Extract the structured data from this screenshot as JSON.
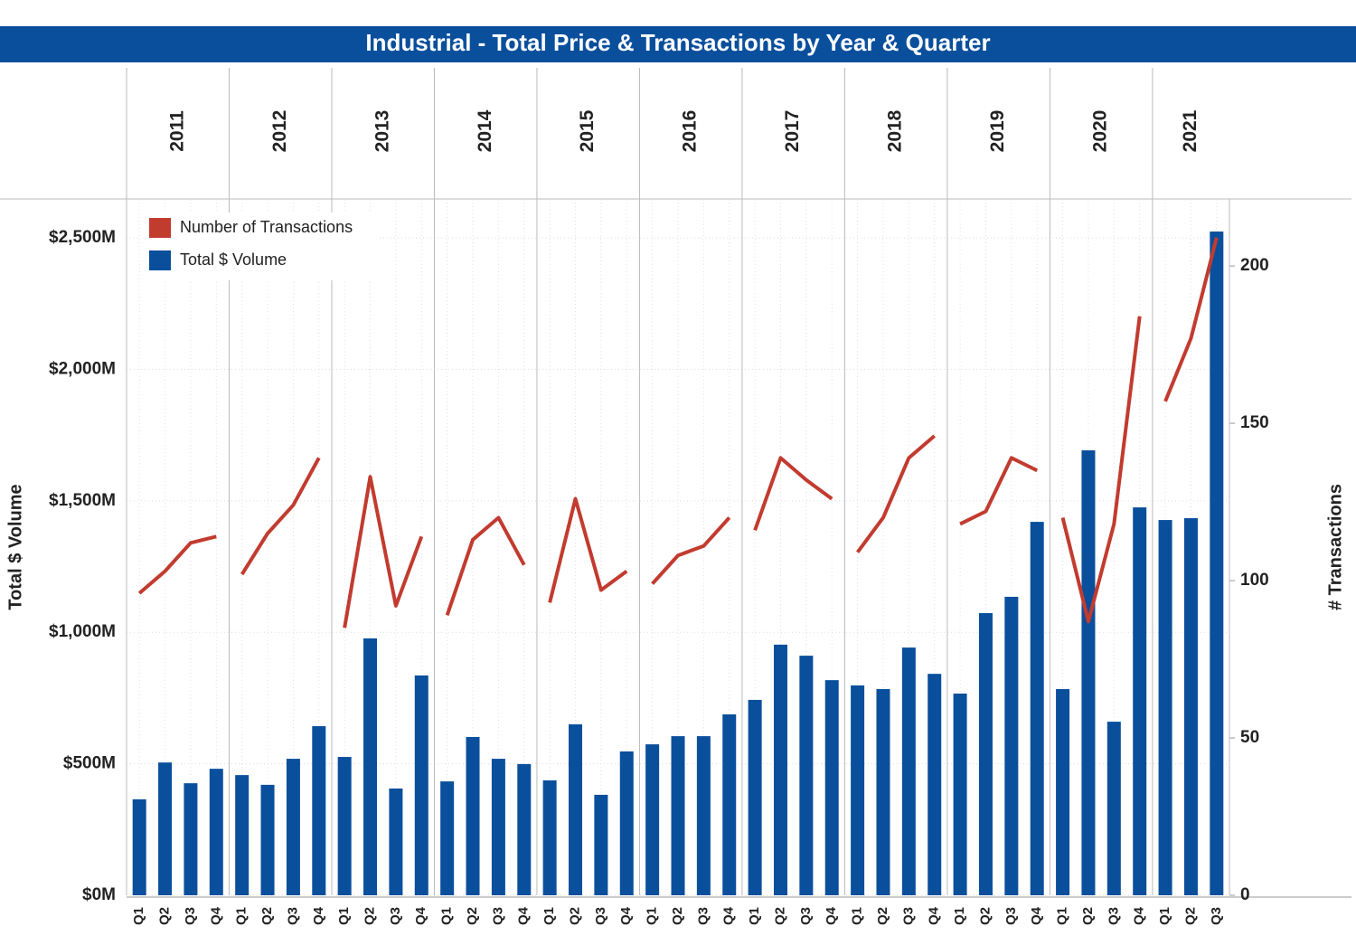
{
  "chart_data": {
    "type": "bar-line",
    "title": "Industrial - Total Price & Transactions by Year & Quarter",
    "y_label": "Total $ Volume",
    "y2_label": "# Transactions",
    "groups": [
      {
        "name": "2011",
        "categories": [
          "Q1",
          "Q2",
          "Q3",
          "Q4"
        ]
      },
      {
        "name": "2012",
        "categories": [
          "Q1",
          "Q2",
          "Q3",
          "Q4"
        ]
      },
      {
        "name": "2013",
        "categories": [
          "Q1",
          "Q2",
          "Q3",
          "Q4"
        ]
      },
      {
        "name": "2014",
        "categories": [
          "Q1",
          "Q2",
          "Q3",
          "Q4"
        ]
      },
      {
        "name": "2015",
        "categories": [
          "Q1",
          "Q2",
          "Q3",
          "Q4"
        ]
      },
      {
        "name": "2016",
        "categories": [
          "Q1",
          "Q2",
          "Q3",
          "Q4"
        ]
      },
      {
        "name": "2017",
        "categories": [
          "Q1",
          "Q2",
          "Q3",
          "Q4"
        ]
      },
      {
        "name": "2018",
        "categories": [
          "Q1",
          "Q2",
          "Q3",
          "Q4"
        ]
      },
      {
        "name": "2019",
        "categories": [
          "Q1",
          "Q2",
          "Q3",
          "Q4"
        ]
      },
      {
        "name": "2020",
        "categories": [
          "Q1",
          "Q2",
          "Q3",
          "Q4"
        ]
      },
      {
        "name": "2021",
        "categories": [
          "Q1",
          "Q2",
          "Q3"
        ]
      }
    ],
    "series": [
      {
        "name": "Number of Transactions",
        "color": "#c23b2f",
        "type": "line",
        "axis": "y2",
        "values": [
          96,
          103,
          112,
          114,
          102,
          115,
          124,
          139,
          85,
          133,
          92,
          114,
          89,
          113,
          120,
          105,
          93,
          126,
          97,
          103,
          99,
          108,
          111,
          120,
          116,
          139,
          132,
          126,
          109,
          120,
          139,
          146,
          118,
          122,
          139,
          135,
          120,
          87,
          118,
          184,
          157,
          177,
          209
        ]
      },
      {
        "name": "Total $ Volume",
        "color": "#0a4f9c",
        "type": "bar",
        "values": [
          365,
          505,
          426,
          481,
          457,
          420,
          519,
          643,
          526,
          977,
          406,
          836,
          433,
          602,
          519,
          499,
          437,
          650,
          382,
          547,
          574,
          605,
          605,
          688,
          743,
          953,
          911,
          818,
          798,
          784,
          942,
          842,
          767,
          1073,
          1135,
          1420,
          784,
          1692,
          660,
          1475,
          1427,
          1434,
          2524
        ]
      }
    ],
    "ylim": [
      0,
      2648
    ],
    "yticks": [
      {
        "value": 0,
        "label": "$0M"
      },
      {
        "value": 500,
        "label": "$500M"
      },
      {
        "value": 1000,
        "label": "$1,000M"
      },
      {
        "value": 1500,
        "label": "$1,500M"
      },
      {
        "value": 2000,
        "label": "$2,000M"
      },
      {
        "value": 2500,
        "label": "$2,500M"
      }
    ],
    "y2lim": [
      0,
      221.3
    ],
    "y2ticks": [
      0,
      50,
      100,
      150,
      200
    ],
    "grid": true,
    "legend": "top-left"
  }
}
